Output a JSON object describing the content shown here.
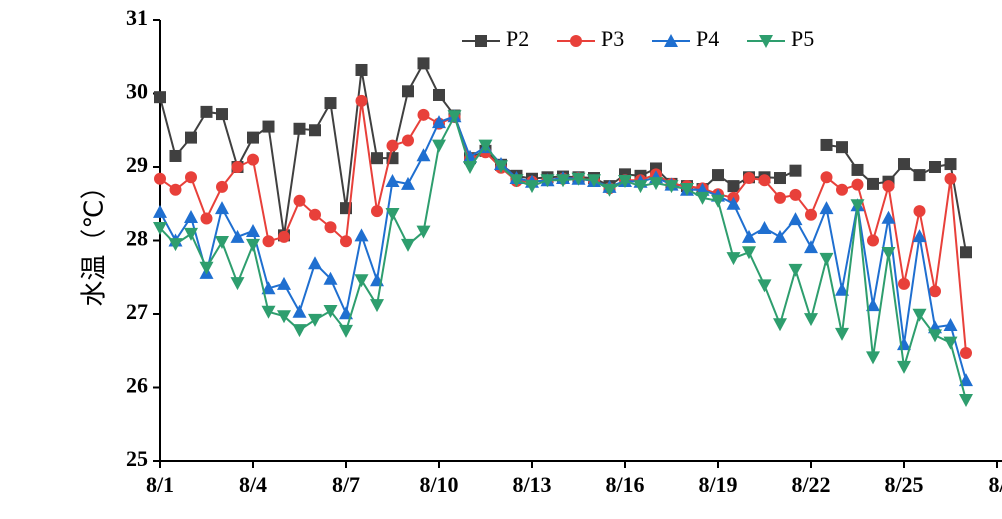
{
  "chart_data": {
    "type": "line",
    "y_label": "水温（℃）",
    "x": [
      1,
      1.5,
      2,
      2.5,
      3,
      3.5,
      4,
      4.5,
      5,
      5.5,
      6,
      6.5,
      7,
      7.5,
      8,
      8.5,
      9,
      9.5,
      10,
      10.5,
      11,
      11.5,
      12,
      12.5,
      13,
      13.5,
      14,
      14.5,
      15,
      15.5,
      16,
      16.5,
      17,
      17.5,
      18,
      18.5,
      19,
      19.5,
      20,
      20.5,
      21,
      21.5,
      22,
      22.5,
      23,
      23.5,
      24,
      24.5,
      25,
      25.5,
      26,
      26.5,
      27
    ],
    "series": [
      {
        "name": "P2",
        "color": "#404040",
        "marker": "square",
        "values": [
          29.95,
          29.15,
          29.4,
          29.75,
          29.72,
          29.0,
          29.4,
          29.55,
          28.07,
          29.52,
          29.5,
          29.87,
          28.44,
          30.32,
          29.12,
          29.12,
          30.03,
          30.41,
          29.98,
          29.7,
          29.12,
          29.22,
          29.03,
          28.88,
          28.84,
          28.86,
          28.87,
          28.86,
          28.85,
          28.74,
          28.9,
          28.88,
          28.98,
          28.77,
          28.74,
          28.7,
          28.89,
          28.74,
          28.86,
          28.86,
          28.85,
          28.95,
          null,
          29.3,
          29.27,
          28.96,
          28.77,
          28.8,
          29.04,
          28.89,
          29.0,
          29.04,
          27.84
        ]
      },
      {
        "name": "P3",
        "color": "#e8403a",
        "marker": "circle",
        "values": [
          28.84,
          28.69,
          28.86,
          28.3,
          28.73,
          29.0,
          29.1,
          27.99,
          28.05,
          28.54,
          28.35,
          28.18,
          27.99,
          29.9,
          28.4,
          29.29,
          29.36,
          29.71,
          29.59,
          29.68,
          29.11,
          29.2,
          28.99,
          28.81,
          28.8,
          28.82,
          28.84,
          28.85,
          28.81,
          28.71,
          28.82,
          28.82,
          28.9,
          28.77,
          28.74,
          28.71,
          28.63,
          28.58,
          28.85,
          28.82,
          28.58,
          28.62,
          28.35,
          28.86,
          28.69,
          28.76,
          28.0,
          28.74,
          27.41,
          28.4,
          27.31,
          28.84,
          26.47
        ]
      },
      {
        "name": "P4",
        "color": "#1f6fd0",
        "marker": "triangle-up",
        "values": [
          28.39,
          28.0,
          28.32,
          27.56,
          28.44,
          28.05,
          28.13,
          27.35,
          27.41,
          27.03,
          27.69,
          27.48,
          27.01,
          28.07,
          27.46,
          28.81,
          28.77,
          29.16,
          29.61,
          29.69,
          29.14,
          29.27,
          29.04,
          28.85,
          28.8,
          28.82,
          28.85,
          28.84,
          28.81,
          28.73,
          28.81,
          28.8,
          28.86,
          28.76,
          28.69,
          28.69,
          28.61,
          28.5,
          28.05,
          28.17,
          28.05,
          28.29,
          27.91,
          28.44,
          27.33,
          28.48,
          27.12,
          28.31,
          26.59,
          28.06,
          26.82,
          26.85,
          26.1
        ]
      },
      {
        "name": "P5",
        "color": "#2e9e6e",
        "marker": "triangle-down",
        "values": [
          28.17,
          27.95,
          28.09,
          27.63,
          27.98,
          27.42,
          27.94,
          27.03,
          26.97,
          26.78,
          26.92,
          27.04,
          26.77,
          27.46,
          27.12,
          28.36,
          27.94,
          28.12,
          29.29,
          29.69,
          29.0,
          29.29,
          29.01,
          28.82,
          28.74,
          28.82,
          28.82,
          28.84,
          28.82,
          28.69,
          28.81,
          28.74,
          28.78,
          28.74,
          28.7,
          28.58,
          28.54,
          27.76,
          27.84,
          27.39,
          26.86,
          27.6,
          26.93,
          27.75,
          26.73,
          28.48,
          26.41,
          27.83,
          26.28,
          26.99,
          26.71,
          26.61,
          25.83
        ]
      }
    ],
    "xlim": [
      1,
      28
    ],
    "xticks": [
      {
        "value": 1,
        "label": "8/1"
      },
      {
        "value": 4,
        "label": "8/4"
      },
      {
        "value": 7,
        "label": "8/7"
      },
      {
        "value": 10,
        "label": "8/10"
      },
      {
        "value": 13,
        "label": "8/13"
      },
      {
        "value": 16,
        "label": "8/16"
      },
      {
        "value": 19,
        "label": "8/19"
      },
      {
        "value": 22,
        "label": "8/22"
      },
      {
        "value": 25,
        "label": "8/25"
      },
      {
        "value": 28,
        "label": "8/"
      }
    ],
    "ylim": [
      25,
      31
    ],
    "yticks": [
      25,
      26,
      27,
      28,
      29,
      30,
      31
    ],
    "legend": "top"
  }
}
